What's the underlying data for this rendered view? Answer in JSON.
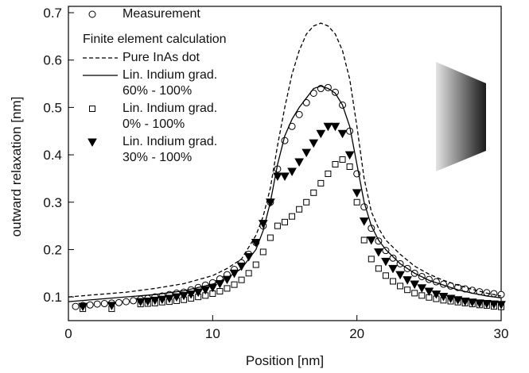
{
  "chart_data": {
    "type": "scatter",
    "xlabel": "Position [nm]",
    "ylabel": "outward relaxation [nm]",
    "xlim": [
      0,
      30
    ],
    "xticks": [
      0,
      10,
      20,
      30
    ],
    "ylim": [
      0.05,
      0.7
    ],
    "yticks": [
      0.1,
      0.2,
      0.3,
      0.4,
      0.5,
      0.6,
      0.7
    ],
    "legend_title": "Finite element calculation",
    "legend_position": "upper left",
    "series": [
      {
        "name": "Measurement",
        "marker": "circle",
        "color": "#000000",
        "x": [
          0.5,
          1,
          1.5,
          2,
          2.5,
          3,
          3.5,
          4,
          4.5,
          5,
          5.5,
          6,
          6.5,
          7,
          7.5,
          8,
          8.5,
          9,
          9.5,
          10,
          10.5,
          11,
          11.5,
          12,
          12.5,
          13,
          13.5,
          14,
          14.5,
          15,
          15.5,
          16,
          16.5,
          17,
          17.5,
          18,
          18.5,
          19,
          19.5,
          20,
          20.5,
          21,
          21.5,
          22,
          22.5,
          23,
          23.5,
          24,
          24.5,
          25,
          25.5,
          26,
          26.5,
          27,
          27.5,
          28,
          28.5,
          29,
          29.5,
          30
        ],
        "values": [
          0.08,
          0.082,
          0.083,
          0.085,
          0.086,
          0.087,
          0.088,
          0.09,
          0.092,
          0.095,
          0.097,
          0.1,
          0.102,
          0.105,
          0.108,
          0.11,
          0.115,
          0.12,
          0.125,
          0.13,
          0.138,
          0.147,
          0.158,
          0.172,
          0.19,
          0.215,
          0.25,
          0.3,
          0.37,
          0.43,
          0.46,
          0.485,
          0.51,
          0.53,
          0.54,
          0.542,
          0.532,
          0.505,
          0.45,
          0.36,
          0.29,
          0.245,
          0.218,
          0.198,
          0.182,
          0.17,
          0.16,
          0.15,
          0.143,
          0.137,
          0.132,
          0.127,
          0.123,
          0.12,
          0.117,
          0.114,
          0.111,
          0.109,
          0.107,
          0.105
        ]
      },
      {
        "name": "Pure InAs dot",
        "line": "dashed",
        "color": "#000000",
        "x": [
          0,
          2,
          4,
          6,
          8,
          10,
          11,
          12,
          13,
          13.5,
          14,
          14.5,
          15,
          15.5,
          16,
          16.5,
          17,
          17.5,
          18,
          18.5,
          19,
          19.5,
          20,
          20.5,
          21,
          21.5,
          22,
          23,
          24,
          25,
          26,
          27,
          28,
          29,
          30
        ],
        "values": [
          0.1,
          0.105,
          0.11,
          0.118,
          0.128,
          0.145,
          0.16,
          0.18,
          0.23,
          0.27,
          0.33,
          0.42,
          0.5,
          0.57,
          0.62,
          0.655,
          0.672,
          0.678,
          0.672,
          0.655,
          0.62,
          0.56,
          0.46,
          0.35,
          0.28,
          0.245,
          0.22,
          0.19,
          0.165,
          0.148,
          0.135,
          0.125,
          0.116,
          0.108,
          0.102
        ]
      },
      {
        "name": "Lin. Indium grad.\n60% - 100%",
        "line": "solid",
        "color": "#000000",
        "x": [
          0,
          2,
          4,
          6,
          8,
          10,
          11,
          12,
          13,
          13.5,
          14,
          14.5,
          15,
          15.5,
          16,
          16.5,
          17,
          17.5,
          18,
          18.5,
          19,
          19.5,
          20,
          20.5,
          21,
          21.5,
          22,
          23,
          24,
          25,
          26,
          27,
          28,
          29,
          30
        ],
        "values": [
          0.09,
          0.095,
          0.1,
          0.105,
          0.113,
          0.127,
          0.14,
          0.16,
          0.2,
          0.24,
          0.3,
          0.38,
          0.44,
          0.475,
          0.5,
          0.52,
          0.54,
          0.545,
          0.54,
          0.53,
          0.505,
          0.46,
          0.38,
          0.3,
          0.25,
          0.22,
          0.2,
          0.17,
          0.15,
          0.135,
          0.125,
          0.115,
          0.108,
          0.102,
          0.098
        ]
      },
      {
        "name": "Lin. Indium grad.\n0% - 100%",
        "marker": "square",
        "color": "#000000",
        "x": [
          1,
          3,
          5,
          5.5,
          6,
          6.5,
          7,
          7.5,
          8,
          8.5,
          9,
          9.5,
          10,
          10.5,
          11,
          11.5,
          12,
          12.5,
          13,
          13.5,
          14,
          14.5,
          15,
          15.5,
          16,
          16.5,
          17,
          17.5,
          18,
          18.5,
          19,
          19.5,
          20,
          20.5,
          21,
          21.5,
          22,
          22.5,
          23,
          23.5,
          24,
          24.5,
          25,
          25.5,
          26,
          26.5,
          27,
          27.5,
          28,
          28.5,
          29,
          29.5,
          30
        ],
        "values": [
          0.075,
          0.075,
          0.085,
          0.086,
          0.087,
          0.089,
          0.09,
          0.092,
          0.094,
          0.097,
          0.1,
          0.103,
          0.107,
          0.112,
          0.118,
          0.126,
          0.136,
          0.15,
          0.168,
          0.195,
          0.225,
          0.25,
          0.258,
          0.27,
          0.285,
          0.3,
          0.32,
          0.34,
          0.36,
          0.38,
          0.39,
          0.375,
          0.3,
          0.22,
          0.18,
          0.16,
          0.145,
          0.133,
          0.123,
          0.115,
          0.108,
          0.103,
          0.099,
          0.096,
          0.093,
          0.091,
          0.089,
          0.087,
          0.085,
          0.083,
          0.082,
          0.08,
          0.079
        ]
      },
      {
        "name": "Lin. Indium grad.\n30% - 100%",
        "marker": "triangle-down",
        "color": "#000000",
        "x": [
          1,
          3,
          5,
          5.5,
          6,
          6.5,
          7,
          7.5,
          8,
          8.5,
          9,
          9.5,
          10,
          10.5,
          11,
          11.5,
          12,
          12.5,
          13,
          13.5,
          14,
          14.5,
          15,
          15.5,
          16,
          16.5,
          17,
          17.5,
          18,
          18.5,
          19,
          19.5,
          20,
          20.5,
          21,
          21.5,
          22,
          22.5,
          23,
          23.5,
          24,
          24.5,
          25,
          25.5,
          26,
          26.5,
          27,
          27.5,
          28,
          28.5,
          29,
          29.5,
          30
        ],
        "values": [
          0.08,
          0.082,
          0.09,
          0.091,
          0.093,
          0.095,
          0.097,
          0.1,
          0.103,
          0.106,
          0.11,
          0.115,
          0.12,
          0.128,
          0.137,
          0.15,
          0.165,
          0.185,
          0.215,
          0.255,
          0.3,
          0.355,
          0.355,
          0.365,
          0.385,
          0.405,
          0.425,
          0.445,
          0.46,
          0.46,
          0.445,
          0.4,
          0.32,
          0.26,
          0.22,
          0.195,
          0.175,
          0.16,
          0.147,
          0.136,
          0.127,
          0.119,
          0.112,
          0.106,
          0.101,
          0.097,
          0.094,
          0.091,
          0.089,
          0.087,
          0.086,
          0.085,
          0.084
        ]
      }
    ]
  }
}
